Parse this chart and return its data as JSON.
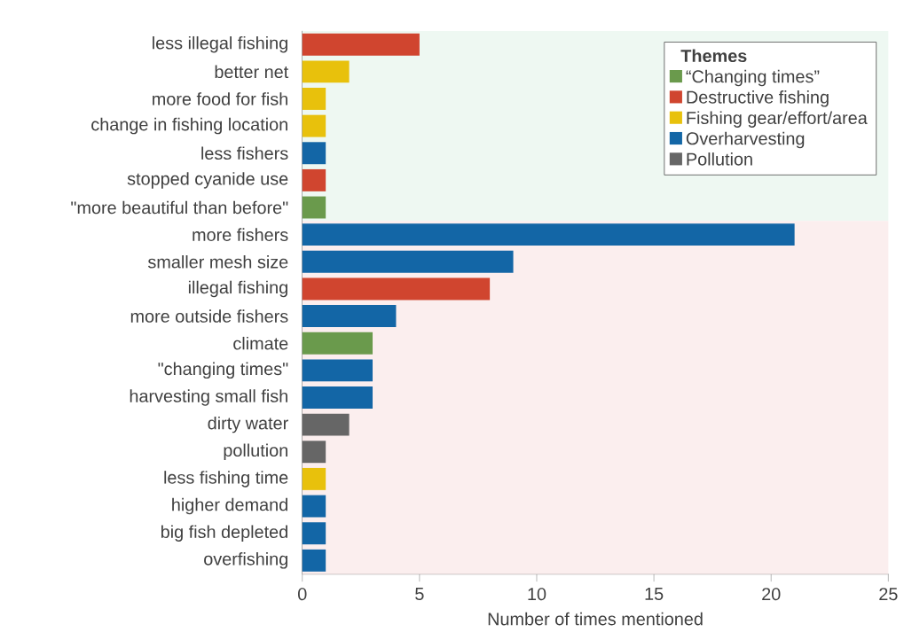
{
  "chart_data": {
    "type": "bar",
    "orientation": "horizontal",
    "xlabel": "Number of times mentioned",
    "legend_title": "Themes",
    "legend": "top right",
    "categories": [
      "less illegal fishing",
      "better net",
      "more food for fish",
      "change in fishing location",
      "less fishers",
      "stopped cyanide use",
      "\"more beautiful than before\"",
      "more fishers",
      "smaller mesh size",
      "illegal fishing",
      "more outside fishers",
      "climate",
      "\"changing times\"",
      "harvesting small fish",
      "dirty water",
      "pollution",
      "less fishing time",
      "higher demand",
      "big fish depleted",
      "overfishing"
    ],
    "series": [
      {
        "name": "“Changing times”",
        "color": "#6a9a4c",
        "values": [
          null,
          null,
          null,
          null,
          null,
          null,
          1,
          null,
          null,
          null,
          null,
          3,
          null,
          null,
          null,
          null,
          null,
          null,
          null,
          null
        ]
      },
      {
        "name": "Destructive fishing",
        "color": "#d0452f",
        "values": [
          5,
          null,
          null,
          null,
          null,
          1,
          null,
          null,
          null,
          8,
          null,
          null,
          null,
          null,
          null,
          null,
          null,
          null,
          null,
          null
        ]
      },
      {
        "name": "Fishing gear/effort/area",
        "color": "#e8c10c",
        "values": [
          null,
          2,
          1,
          1,
          null,
          null,
          null,
          null,
          null,
          null,
          null,
          null,
          null,
          null,
          null,
          null,
          1,
          null,
          null,
          null
        ]
      },
      {
        "name": "Overharvesting",
        "color": "#1366a6",
        "values": [
          null,
          null,
          null,
          null,
          1,
          null,
          null,
          21,
          9,
          null,
          4,
          null,
          3,
          3,
          null,
          null,
          null,
          1,
          1,
          1
        ]
      },
      {
        "name": "Pollution",
        "color": "#666666",
        "values": [
          null,
          null,
          null,
          null,
          null,
          null,
          null,
          null,
          null,
          null,
          null,
          null,
          null,
          null,
          2,
          1,
          null,
          null,
          null,
          null
        ]
      }
    ],
    "xlim": [
      0,
      25
    ],
    "xticks": [
      0,
      5,
      10,
      15,
      20,
      25
    ],
    "grid": false,
    "bands": [
      {
        "axis": "y",
        "from": "less illegal fishing",
        "to": "\"more beautiful than before\"",
        "color": "#eef8f2"
      },
      {
        "axis": "y",
        "from": "more fishers",
        "to": "overfishing",
        "color": "#fbeeee"
      }
    ]
  }
}
